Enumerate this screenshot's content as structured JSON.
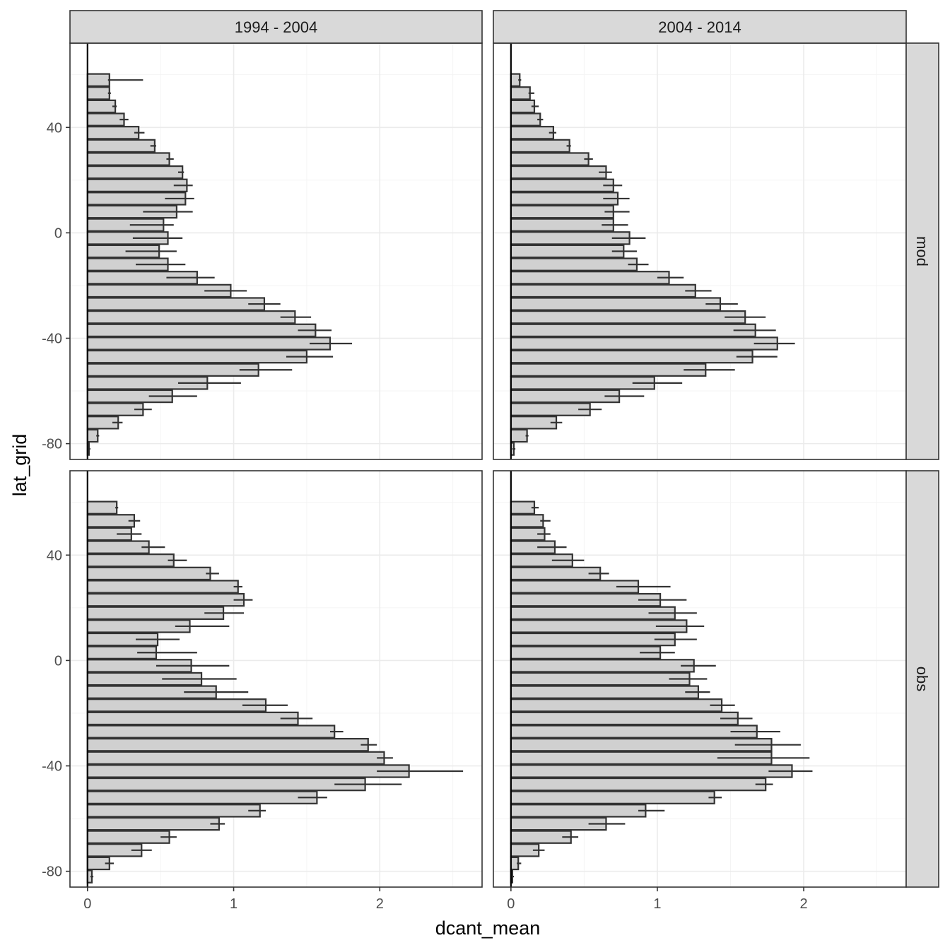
{
  "chart_data": {
    "type": "bar",
    "orientation": "horizontal",
    "xlabel": "dcant_mean",
    "ylabel": "lat_grid",
    "xlim": [
      -0.12,
      2.7
    ],
    "ylim": [
      -86,
      72
    ],
    "x_ticks": [
      0,
      1,
      2
    ],
    "y_ticks": [
      -80,
      -40,
      0,
      40
    ],
    "grid": true,
    "col_facets": [
      "1994 - 2004",
      "2004 - 2014"
    ],
    "row_facets": [
      "mod",
      "obs"
    ],
    "lat": [
      -82,
      -77,
      -72,
      -67,
      -62,
      -57,
      -52,
      -47,
      -42,
      -37,
      -32,
      -27,
      -22,
      -17,
      -12,
      -7,
      -2,
      3,
      8,
      13,
      18,
      23,
      28,
      33,
      38,
      43,
      48,
      53,
      58,
      63,
      68
    ],
    "panels": [
      {
        "row": "mod",
        "col": "1994 - 2004",
        "values": [
          0.01,
          0.07,
          0.21,
          0.38,
          0.58,
          0.82,
          1.17,
          1.5,
          1.66,
          1.56,
          1.42,
          1.21,
          0.98,
          0.75,
          0.55,
          0.49,
          0.55,
          0.52,
          0.61,
          0.67,
          0.68,
          0.65,
          0.56,
          0.46,
          0.35,
          0.25,
          0.19,
          0.15,
          0.15,
          null,
          null
        ],
        "err_low": [
          0.0,
          0.06,
          0.17,
          0.32,
          0.42,
          0.62,
          1.04,
          1.36,
          1.52,
          1.44,
          1.32,
          1.1,
          0.8,
          0.54,
          0.33,
          0.26,
          0.31,
          0.29,
          0.38,
          0.53,
          0.59,
          0.62,
          0.54,
          0.43,
          0.32,
          0.22,
          0.17,
          0.14,
          0.14,
          null,
          null
        ],
        "err_high": [
          0.02,
          0.08,
          0.24,
          0.44,
          0.75,
          1.05,
          1.4,
          1.68,
          1.81,
          1.67,
          1.53,
          1.32,
          1.09,
          0.87,
          0.67,
          0.61,
          0.65,
          0.59,
          0.72,
          0.73,
          0.72,
          0.66,
          0.59,
          0.47,
          0.39,
          0.28,
          0.2,
          0.16,
          0.38,
          null,
          null
        ]
      },
      {
        "row": "mod",
        "col": "2004 - 2014",
        "values": [
          0.02,
          0.11,
          0.31,
          0.54,
          0.74,
          0.98,
          1.33,
          1.65,
          1.82,
          1.67,
          1.6,
          1.43,
          1.26,
          1.08,
          0.86,
          0.77,
          0.81,
          0.7,
          0.7,
          0.73,
          0.7,
          0.65,
          0.53,
          0.4,
          0.29,
          0.2,
          0.16,
          0.13,
          0.06,
          null,
          null
        ],
        "err_low": [
          0.01,
          0.1,
          0.27,
          0.46,
          0.64,
          0.83,
          1.18,
          1.54,
          1.66,
          1.52,
          1.46,
          1.33,
          1.19,
          1.0,
          0.8,
          0.69,
          0.69,
          0.62,
          0.64,
          0.63,
          0.63,
          0.6,
          0.5,
          0.38,
          0.26,
          0.18,
          0.14,
          0.12,
          0.05,
          null,
          null
        ],
        "err_high": [
          0.03,
          0.12,
          0.35,
          0.62,
          0.91,
          1.17,
          1.53,
          1.82,
          1.94,
          1.81,
          1.74,
          1.55,
          1.37,
          1.18,
          0.94,
          0.86,
          0.92,
          0.8,
          0.81,
          0.81,
          0.76,
          0.69,
          0.56,
          0.41,
          0.31,
          0.22,
          0.19,
          0.16,
          0.07,
          null,
          null
        ]
      },
      {
        "row": "obs",
        "col": "1994 - 2004",
        "values": [
          0.03,
          0.15,
          0.37,
          0.56,
          0.9,
          1.18,
          1.57,
          1.9,
          2.2,
          2.03,
          1.92,
          1.69,
          1.44,
          1.22,
          0.88,
          0.78,
          0.71,
          0.47,
          0.48,
          0.7,
          0.93,
          1.07,
          1.03,
          0.84,
          0.59,
          0.42,
          0.3,
          0.32,
          0.2,
          null,
          null
        ],
        "err_low": [
          0.02,
          0.12,
          0.3,
          0.5,
          0.84,
          1.1,
          1.44,
          1.69,
          1.98,
          1.98,
          1.87,
          1.66,
          1.32,
          1.06,
          0.66,
          0.51,
          0.47,
          0.34,
          0.33,
          0.6,
          0.8,
          1.0,
          1.0,
          0.81,
          0.55,
          0.37,
          0.2,
          0.28,
          0.19,
          null,
          null
        ],
        "err_high": [
          0.04,
          0.18,
          0.44,
          0.61,
          0.94,
          1.22,
          1.64,
          2.15,
          2.57,
          2.09,
          1.98,
          1.75,
          1.54,
          1.37,
          1.1,
          1.02,
          0.97,
          0.75,
          0.63,
          0.97,
          1.07,
          1.13,
          1.06,
          0.9,
          0.68,
          0.53,
          0.37,
          0.36,
          0.21,
          null,
          null
        ]
      },
      {
        "row": "obs",
        "col": "2004 - 2014",
        "values": [
          0.01,
          0.05,
          0.19,
          0.41,
          0.65,
          0.92,
          1.39,
          1.74,
          1.92,
          1.78,
          1.78,
          1.68,
          1.55,
          1.44,
          1.28,
          1.22,
          1.25,
          1.02,
          1.12,
          1.2,
          1.12,
          1.02,
          0.87,
          0.61,
          0.42,
          0.3,
          0.23,
          0.22,
          0.16,
          null,
          null
        ],
        "err_low": [
          0.0,
          0.04,
          0.15,
          0.35,
          0.53,
          0.87,
          1.35,
          1.67,
          1.76,
          1.41,
          1.53,
          1.5,
          1.43,
          1.36,
          1.19,
          1.08,
          1.16,
          0.88,
          0.98,
          0.99,
          0.94,
          0.87,
          0.72,
          0.53,
          0.28,
          0.18,
          0.18,
          0.2,
          0.14,
          null,
          null
        ],
        "err_high": [
          0.02,
          0.07,
          0.23,
          0.46,
          0.78,
          1.05,
          1.44,
          1.79,
          2.06,
          2.04,
          1.98,
          1.84,
          1.65,
          1.53,
          1.36,
          1.34,
          1.4,
          1.12,
          1.27,
          1.32,
          1.27,
          1.2,
          1.09,
          0.67,
          0.5,
          0.38,
          0.27,
          0.27,
          0.19,
          null,
          null
        ]
      }
    ]
  }
}
